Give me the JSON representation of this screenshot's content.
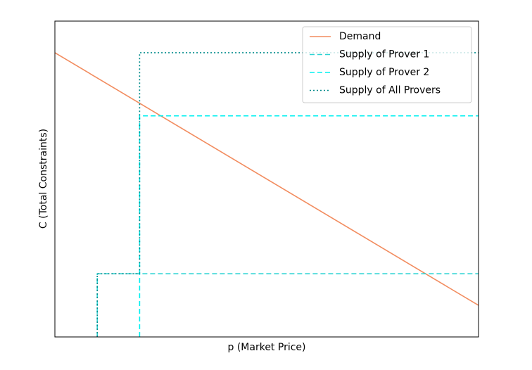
{
  "chart_data": {
    "type": "line",
    "xlabel": "p (Market Price)",
    "ylabel": "C (Total Constraints)",
    "xlim": [
      0,
      10
    ],
    "ylim": [
      0,
      10
    ],
    "xticks": [],
    "yticks": [],
    "grid": false,
    "legend": "upper right",
    "series": [
      {
        "name": "Demand",
        "color": "#f28c5f",
        "linestyle": "solid",
        "x": [
          0,
          10
        ],
        "values": [
          9,
          1
        ]
      },
      {
        "name": "Supply of Prover 1",
        "color": "#2ed3d3",
        "linestyle": "dashed",
        "x": [
          1,
          1,
          10
        ],
        "values": [
          0,
          2,
          2
        ]
      },
      {
        "name": "Supply of Prover 2",
        "color": "#00f0f0",
        "linestyle": "dashed",
        "x": [
          2,
          2,
          10
        ],
        "values": [
          0,
          7,
          7
        ]
      },
      {
        "name": "Supply of All Provers",
        "color": "#008b8b",
        "linestyle": "dotted",
        "x": [
          1,
          1,
          2,
          2,
          10
        ],
        "values": [
          0,
          2,
          2,
          9,
          9
        ]
      }
    ]
  }
}
